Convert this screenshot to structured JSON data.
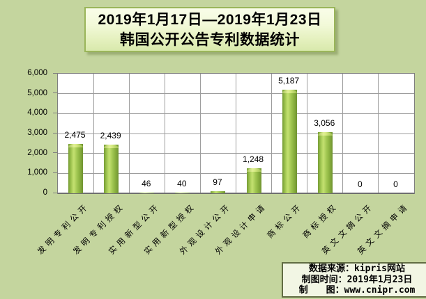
{
  "title": {
    "line1": "2019年1月17日—2019年1月23日",
    "line2": "韩国公开公告专利数据统计"
  },
  "chart_data": {
    "type": "bar",
    "title": "2019年1月17日—2019年1月23日 韩国公开公告专利数据统计",
    "categories": [
      "发明专利公开",
      "发明专利授权",
      "实用新型公开",
      "实用新型授权",
      "外观设计公开",
      "外观设计申请",
      "商标公开",
      "商标授权",
      "英文文摘公开",
      "英文文摘申请"
    ],
    "values": [
      2475,
      2439,
      46,
      40,
      97,
      1248,
      5187,
      3056,
      0,
      0
    ],
    "data_labels": [
      "2,475",
      "2,439",
      "46",
      "40",
      "97",
      "1,248",
      "5,187",
      "3,056",
      "0",
      "0"
    ],
    "xlabel": "",
    "ylabel": "",
    "ylim": [
      0,
      6000
    ],
    "ytick_interval": 1000,
    "yticks": [
      "6,000",
      "5,000",
      "4,000",
      "3,000",
      "2,000",
      "1,000",
      "0"
    ],
    "grid": true,
    "legend": false,
    "bar_color": "#9cc34a"
  },
  "footer": {
    "lines": [
      "数据来源：kipris网站",
      "制图时间：2019年1月23日",
      "制　　图：www.cnipr.com"
    ]
  },
  "colors": {
    "background": "#c4d59e",
    "plot_background": "#ffffff",
    "gridline": "#9d9d9d",
    "bar_main": "#9cc34a",
    "bar_highlight": "#c3e070",
    "title_box_border": "#9ab55a",
    "footer_box_border": "#606c42"
  }
}
